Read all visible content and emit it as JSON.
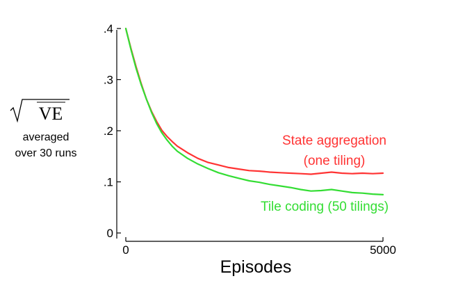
{
  "chart_data": {
    "type": "line",
    "xlabel": "Episodes",
    "ylabel": {
      "symbol": "VE",
      "line1": "averaged",
      "line2": "over 30 runs"
    },
    "xlim": [
      0,
      5000
    ],
    "ylim": [
      0,
      0.4
    ],
    "x_ticks": [
      {
        "value": 0,
        "label": "0"
      },
      {
        "value": 5000,
        "label": "5000"
      }
    ],
    "y_ticks": [
      {
        "value": 0,
        "label": "0"
      },
      {
        "value": 0.1,
        "label": ".1"
      },
      {
        "value": 0.2,
        "label": ".2"
      },
      {
        "value": 0.3,
        "label": ".3"
      },
      {
        "value": 0.4,
        "label": ".4"
      }
    ],
    "grid": false,
    "legend": "inline labels next to series ends",
    "series": [
      {
        "name_lines": [
          "State aggregation",
          "(one tiling)"
        ],
        "color": "#ff3333",
        "x": [
          0,
          100,
          200,
          300,
          400,
          500,
          600,
          700,
          800,
          900,
          1000,
          1200,
          1400,
          1600,
          1800,
          2000,
          2200,
          2400,
          2600,
          2800,
          3000,
          3200,
          3400,
          3600,
          3800,
          4000,
          4200,
          4400,
          4600,
          4800,
          5000
        ],
        "y": [
          0.4,
          0.361,
          0.325,
          0.292,
          0.262,
          0.238,
          0.218,
          0.201,
          0.189,
          0.179,
          0.17,
          0.157,
          0.146,
          0.138,
          0.133,
          0.128,
          0.125,
          0.122,
          0.121,
          0.119,
          0.118,
          0.117,
          0.116,
          0.115,
          0.117,
          0.119,
          0.117,
          0.116,
          0.117,
          0.116,
          0.117
        ]
      },
      {
        "name_lines": [
          "Tile coding (50 tilings)"
        ],
        "color": "#33dd33",
        "x": [
          0,
          100,
          200,
          300,
          400,
          500,
          600,
          700,
          800,
          900,
          1000,
          1200,
          1400,
          1600,
          1800,
          2000,
          2200,
          2400,
          2600,
          2800,
          3000,
          3200,
          3400,
          3600,
          3800,
          4000,
          4200,
          4400,
          4600,
          4800,
          5000
        ],
        "y": [
          0.4,
          0.359,
          0.322,
          0.29,
          0.262,
          0.236,
          0.214,
          0.196,
          0.182,
          0.17,
          0.16,
          0.146,
          0.135,
          0.126,
          0.118,
          0.112,
          0.107,
          0.102,
          0.099,
          0.095,
          0.092,
          0.089,
          0.085,
          0.082,
          0.083,
          0.085,
          0.082,
          0.079,
          0.078,
          0.076,
          0.075
        ]
      }
    ]
  }
}
